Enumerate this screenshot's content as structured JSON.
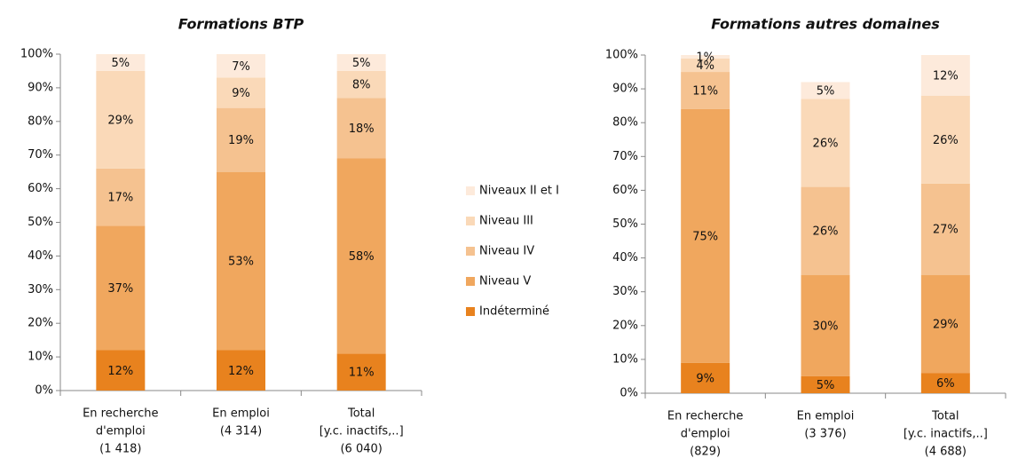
{
  "chart_data": [
    {
      "type": "stacked_bar",
      "title": "Formations BTP",
      "categories": [
        [
          "En recherche",
          "d'emploi",
          "(1 418)"
        ],
        [
          "En emploi",
          "(4 314)"
        ],
        [
          "Total",
          "[y.c. inactifs,..]",
          "(6 040)"
        ]
      ],
      "ylim": [
        0,
        100
      ],
      "yticks": [
        {
          "value": 0,
          "label": "0%"
        },
        {
          "value": 10,
          "label": "10%"
        },
        {
          "value": 20,
          "label": "20%"
        },
        {
          "value": 30,
          "label": "30%"
        },
        {
          "value": 40,
          "label": "40%"
        },
        {
          "value": 50,
          "label": "50%"
        },
        {
          "value": 60,
          "label": "60%"
        },
        {
          "value": 70,
          "label": "70%"
        },
        {
          "value": 80,
          "label": "80%"
        },
        {
          "value": 90,
          "label": "90%"
        },
        {
          "value": 100,
          "label": "100%"
        }
      ],
      "series": [
        {
          "name": "Indéterminé",
          "color": "#e8821e",
          "values": [
            12,
            12,
            11
          ],
          "value_labels": [
            "12%",
            "12%",
            "11%"
          ]
        },
        {
          "name": "Niveau V",
          "color": "#f0a75e",
          "values": [
            37,
            53,
            58
          ],
          "value_labels": [
            "37%",
            "53%",
            "58%"
          ]
        },
        {
          "name": "Niveau IV",
          "color": "#f5c290",
          "values": [
            17,
            19,
            18
          ],
          "value_labels": [
            "17%",
            "19%",
            "18%"
          ]
        },
        {
          "name": "Niveau III",
          "color": "#fad9b8",
          "values": [
            29,
            9,
            8
          ],
          "value_labels": [
            "29%",
            "9%",
            "8%"
          ]
        },
        {
          "name": "Niveaux II et I",
          "color": "#fdeadb",
          "values": [
            5,
            7,
            5
          ],
          "value_labels": [
            "5%",
            "7%",
            "5%"
          ]
        }
      ]
    },
    {
      "type": "stacked_bar",
      "title": "Formations autres domaines",
      "categories": [
        [
          "En recherche",
          "d'emploi",
          "(829)"
        ],
        [
          "En emploi",
          "(3 376)"
        ],
        [
          "Total",
          "[y.c. inactifs,..]",
          "(4 688)"
        ]
      ],
      "ylim": [
        0,
        100
      ],
      "yticks": [
        {
          "value": 0,
          "label": "0%"
        },
        {
          "value": 10,
          "label": "10%"
        },
        {
          "value": 20,
          "label": "20%"
        },
        {
          "value": 30,
          "label": "30%"
        },
        {
          "value": 40,
          "label": "40%"
        },
        {
          "value": 50,
          "label": "50%"
        },
        {
          "value": 60,
          "label": "60%"
        },
        {
          "value": 70,
          "label": "70%"
        },
        {
          "value": 80,
          "label": "80%"
        },
        {
          "value": 90,
          "label": "90%"
        },
        {
          "value": 100,
          "label": "100%"
        }
      ],
      "series": [
        {
          "color": "#e8821e",
          "values": [
            9,
            5,
            6
          ],
          "value_labels": [
            "9%",
            "5%",
            "6%"
          ]
        },
        {
          "color": "#f0a75e",
          "values": [
            75,
            30,
            29
          ],
          "value_labels": [
            "75%",
            "30%",
            "29%"
          ]
        },
        {
          "color": "#f5c290",
          "values": [
            11,
            26,
            27
          ],
          "value_labels": [
            "11%",
            "26%",
            "27%"
          ]
        },
        {
          "color": "#fad9b8",
          "values": [
            4,
            26,
            26
          ],
          "value_labels": [
            "4%",
            "26%",
            "26%"
          ]
        },
        {
          "color": "#fdeadb",
          "values": [
            1,
            5,
            12
          ],
          "value_labels": [
            "1%",
            "5%",
            "12%"
          ]
        }
      ]
    }
  ]
}
